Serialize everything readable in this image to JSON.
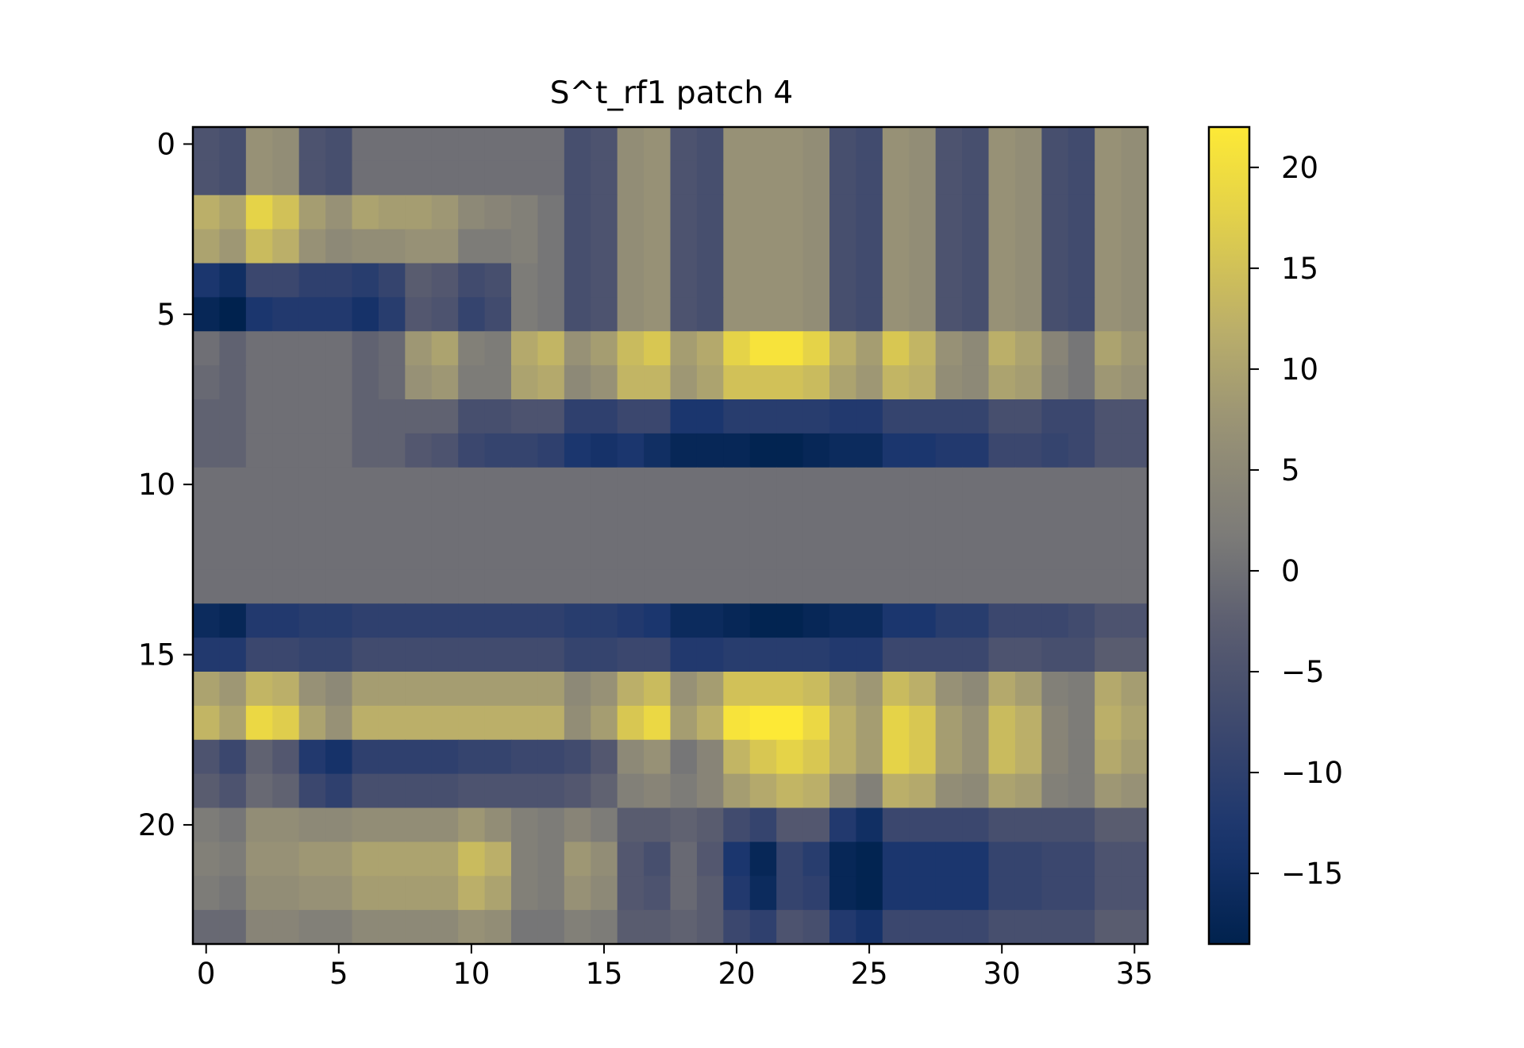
{
  "chart_data": {
    "type": "heatmap",
    "title": "S^t_rf1 patch 4",
    "xlabel": "",
    "ylabel": "",
    "n_rows": 24,
    "n_cols": 36,
    "x_ticks": [
      0,
      5,
      10,
      15,
      20,
      25,
      30,
      35
    ],
    "y_ticks": [
      0,
      5,
      10,
      15,
      20
    ],
    "colormap": "cividis",
    "vmin": -18.5,
    "vmax": 22,
    "colorbar_ticks": [
      20,
      15,
      10,
      5,
      0,
      -5,
      -10,
      -15
    ],
    "grid": false,
    "values": [
      [
        -5,
        -6,
        7,
        6,
        -5,
        -6,
        0,
        0,
        0,
        0,
        0,
        0,
        0,
        0,
        -6,
        -5,
        6,
        7,
        -5,
        -6,
        7,
        7,
        7,
        6,
        -6,
        -7,
        7,
        6,
        -5,
        -6,
        7,
        6,
        -6,
        -7,
        7,
        6
      ],
      [
        -5,
        -6,
        7,
        6,
        -5,
        -6,
        0,
        0,
        0,
        0,
        0,
        0,
        0,
        0,
        -6,
        -5,
        6,
        7,
        -5,
        -6,
        7,
        7,
        7,
        6,
        -6,
        -7,
        7,
        6,
        -5,
        -6,
        7,
        6,
        -6,
        -7,
        7,
        6
      ],
      [
        12,
        10,
        18,
        15,
        9,
        7,
        10,
        9,
        9,
        8,
        5,
        4,
        3,
        1,
        -6,
        -5,
        6,
        7,
        -5,
        -6,
        7,
        7,
        7,
        6,
        -6,
        -7,
        7,
        6,
        -5,
        -6,
        7,
        6,
        -6,
        -7,
        7,
        6
      ],
      [
        10,
        8,
        14,
        12,
        7,
        5,
        6,
        6,
        7,
        7,
        2,
        2,
        3,
        1,
        -6,
        -5,
        6,
        7,
        -5,
        -6,
        7,
        7,
        7,
        6,
        -6,
        -7,
        7,
        6,
        -5,
        -6,
        7,
        6,
        -6,
        -7,
        7,
        6
      ],
      [
        -13,
        -15,
        -8,
        -8,
        -10,
        -10,
        -11,
        -9,
        -3,
        -4,
        -7,
        -6,
        2,
        1,
        -6,
        -5,
        6,
        7,
        -5,
        -6,
        7,
        7,
        7,
        6,
        -6,
        -7,
        7,
        6,
        -5,
        -6,
        7,
        6,
        -6,
        -7,
        7,
        6
      ],
      [
        -17,
        -18.5,
        -13,
        -12,
        -12,
        -12,
        -14,
        -11,
        -4,
        -5,
        -9,
        -7,
        2,
        1,
        -6,
        -5,
        6,
        7,
        -5,
        -6,
        7,
        7,
        7,
        6,
        -6,
        -7,
        7,
        6,
        -5,
        -6,
        7,
        6,
        -6,
        -7,
        7,
        6
      ],
      [
        0,
        -2,
        0,
        0,
        0,
        0,
        -2,
        -1,
        8,
        10,
        3,
        2,
        11,
        13,
        7,
        9,
        14,
        16,
        9,
        11,
        18,
        21,
        21,
        18,
        12,
        9,
        16,
        13,
        7,
        5,
        12,
        10,
        4,
        1,
        10,
        8
      ],
      [
        -1,
        -2,
        0,
        0,
        0,
        0,
        -2,
        -1,
        7,
        8,
        2,
        2,
        10,
        11,
        5,
        7,
        13,
        13,
        8,
        10,
        15,
        15,
        15,
        14,
        10,
        8,
        13,
        12,
        6,
        5,
        10,
        9,
        3,
        1,
        8,
        7
      ],
      [
        -2,
        -2,
        0,
        0,
        0,
        0,
        -2,
        -2,
        -2,
        -2,
        -6,
        -6,
        -5,
        -5,
        -10,
        -10,
        -8,
        -8,
        -13,
        -13,
        -11,
        -11,
        -11,
        -11,
        -12,
        -12,
        -9,
        -9,
        -9,
        -9,
        -6,
        -6,
        -8,
        -8,
        -5,
        -5
      ],
      [
        -2,
        -2,
        0,
        0,
        0,
        0,
        -2,
        -2,
        -4,
        -5,
        -8,
        -9,
        -9,
        -10,
        -13,
        -14,
        -13,
        -15,
        -17,
        -17,
        -17,
        -18,
        -18,
        -17,
        -16,
        -16,
        -13,
        -13,
        -12,
        -12,
        -8,
        -8,
        -9,
        -8,
        -5,
        -5
      ],
      [
        0,
        0,
        0,
        0,
        0,
        0,
        0,
        0,
        0,
        0,
        0,
        0,
        0,
        0,
        0,
        0,
        0,
        0,
        0,
        0,
        0,
        0,
        0,
        0,
        0,
        0,
        0,
        0,
        0,
        0,
        0,
        0,
        0,
        0,
        0,
        0
      ],
      [
        0,
        0,
        0,
        0,
        0,
        0,
        0,
        0,
        0,
        0,
        0,
        0,
        0,
        0,
        0,
        0,
        0,
        0,
        0,
        0,
        0,
        0,
        0,
        0,
        0,
        0,
        0,
        0,
        0,
        0,
        0,
        0,
        0,
        0,
        0,
        0
      ],
      [
        0,
        0,
        0,
        0,
        0,
        0,
        0,
        0,
        0,
        0,
        0,
        0,
        0,
        0,
        0,
        0,
        0,
        0,
        0,
        0,
        0,
        0,
        0,
        0,
        0,
        0,
        0,
        0,
        0,
        0,
        0,
        0,
        0,
        0,
        0,
        0
      ],
      [
        0,
        0,
        0,
        0,
        0,
        0,
        0,
        0,
        0,
        0,
        0,
        0,
        0,
        0,
        0,
        0,
        0,
        0,
        0,
        0,
        0,
        0,
        0,
        0,
        0,
        0,
        0,
        0,
        0,
        0,
        0,
        0,
        0,
        0,
        0,
        0
      ],
      [
        -16,
        -17,
        -12,
        -12,
        -11,
        -11,
        -10,
        -10,
        -10,
        -10,
        -10,
        -10,
        -10,
        -10,
        -11,
        -11,
        -12,
        -13,
        -16,
        -16,
        -17,
        -18,
        -18,
        -17,
        -16,
        -16,
        -13,
        -13,
        -11,
        -11,
        -8,
        -8,
        -8,
        -7,
        -5,
        -5
      ],
      [
        -12,
        -12,
        -8,
        -8,
        -9,
        -9,
        -7,
        -7,
        -7,
        -7,
        -7,
        -7,
        -7,
        -7,
        -9,
        -9,
        -8,
        -8,
        -12,
        -12,
        -11,
        -11,
        -11,
        -11,
        -12,
        -12,
        -8,
        -8,
        -8,
        -8,
        -5,
        -5,
        -6,
        -6,
        -3,
        -3
      ],
      [
        10,
        8,
        13,
        12,
        7,
        5,
        9,
        9,
        9,
        9,
        9,
        9,
        9,
        9,
        5,
        7,
        12,
        14,
        7,
        9,
        15,
        15,
        15,
        14,
        10,
        8,
        14,
        12,
        7,
        5,
        11,
        9,
        3,
        2,
        11,
        9
      ],
      [
        13,
        10,
        19,
        17,
        10,
        7,
        12,
        12,
        12,
        12,
        12,
        12,
        12,
        12,
        6,
        9,
        16,
        19,
        9,
        12,
        21,
        22,
        22,
        19,
        12,
        9,
        18,
        16,
        9,
        7,
        14,
        12,
        4,
        2,
        12,
        10
      ],
      [
        -5,
        -8,
        -2,
        -4,
        -12,
        -14,
        -10,
        -10,
        -10,
        -10,
        -9,
        -9,
        -8,
        -8,
        -7,
        -4,
        5,
        7,
        1,
        4,
        13,
        16,
        18,
        16,
        12,
        9,
        18,
        16,
        9,
        7,
        14,
        12,
        4,
        2,
        11,
        9
      ],
      [
        -3,
        -5,
        -1,
        -2,
        -8,
        -10,
        -6,
        -6,
        -6,
        -6,
        -5,
        -5,
        -5,
        -5,
        -4,
        -2,
        3,
        4,
        2,
        4,
        9,
        11,
        13,
        12,
        7,
        3,
        12,
        11,
        6,
        5,
        10,
        9,
        3,
        2,
        8,
        7
      ],
      [
        2,
        1,
        6,
        6,
        5,
        5,
        6,
        6,
        6,
        6,
        8,
        6,
        3,
        2,
        4,
        2,
        -3,
        -3,
        -2,
        -3,
        -7,
        -9,
        -4,
        -4,
        -12,
        -15,
        -8,
        -8,
        -8,
        -8,
        -6,
        -6,
        -6,
        -6,
        -3,
        -3
      ],
      [
        3,
        2,
        7,
        7,
        8,
        8,
        10,
        10,
        10,
        10,
        14,
        12,
        3,
        2,
        8,
        6,
        -4,
        -6,
        -1,
        -4,
        -13,
        -17,
        -9,
        -11,
        -17,
        -18,
        -13,
        -13,
        -13,
        -13,
        -9,
        -9,
        -8,
        -8,
        -5,
        -5
      ],
      [
        2,
        1,
        6,
        6,
        7,
        7,
        9,
        9,
        9,
        9,
        12,
        10,
        3,
        2,
        7,
        5,
        -4,
        -5,
        -1,
        -3,
        -12,
        -16,
        -9,
        -10,
        -17,
        -18,
        -13,
        -13,
        -13,
        -13,
        -9,
        -9,
        -8,
        -8,
        -5,
        -5
      ],
      [
        -1,
        -1,
        4,
        4,
        3,
        3,
        5,
        5,
        5,
        5,
        7,
        6,
        1,
        1,
        3,
        2,
        -3,
        -3,
        -2,
        -3,
        -8,
        -10,
        -5,
        -6,
        -12,
        -14,
        -8,
        -8,
        -8,
        -8,
        -6,
        -6,
        -6,
        -6,
        -3,
        -3
      ]
    ]
  }
}
